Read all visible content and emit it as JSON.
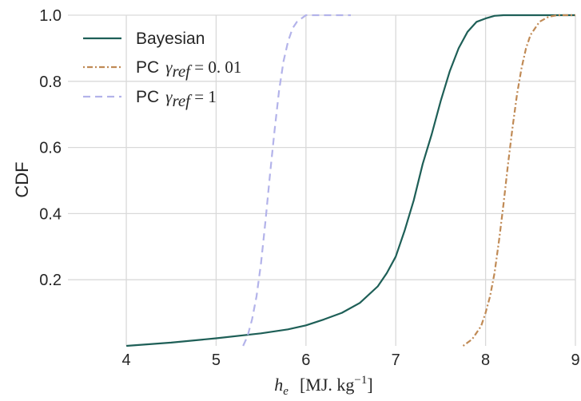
{
  "chart_data": {
    "type": "line",
    "title": "",
    "ylabel": "CDF",
    "xlabel": {
      "var": "h",
      "sub": "e",
      "unit_open": "[MJ. kg",
      "unit_exp": "−1",
      "unit_close": "]"
    },
    "xlim": [
      3.35,
      9.0
    ],
    "ylim": [
      0.0,
      1.0
    ],
    "xticks": [
      4,
      5,
      6,
      7,
      8,
      9
    ],
    "xtick_labels": [
      "4",
      "5",
      "6",
      "7",
      "8",
      "9"
    ],
    "yticks": [
      0.2,
      0.4,
      0.6,
      0.8,
      1.0
    ],
    "ytick_labels": [
      "0.2",
      "0.4",
      "0.6",
      "0.8",
      "1.0"
    ],
    "grid": true,
    "legend_position": "top-left",
    "series": [
      {
        "name": "Bayesian",
        "style": "solid",
        "color": "#1e5f57",
        "x": [
          4.0,
          4.5,
          5.0,
          5.5,
          5.8,
          6.0,
          6.2,
          6.4,
          6.6,
          6.8,
          6.9,
          7.0,
          7.1,
          7.2,
          7.3,
          7.4,
          7.5,
          7.6,
          7.7,
          7.8,
          7.9,
          8.0,
          8.1,
          8.2,
          8.3,
          9.0
        ],
        "y": [
          0.0,
          0.01,
          0.023,
          0.038,
          0.05,
          0.062,
          0.08,
          0.1,
          0.13,
          0.18,
          0.22,
          0.27,
          0.35,
          0.44,
          0.55,
          0.64,
          0.74,
          0.83,
          0.9,
          0.95,
          0.98,
          0.99,
          0.998,
          1.0,
          1.0,
          1.0
        ]
      },
      {
        "name": "PC",
        "name_math": "γ",
        "name_sub": "ref",
        "name_eq": " = 0. 01",
        "style": "dashdot",
        "color": "#c08a55",
        "x": [
          7.75,
          7.85,
          7.95,
          8.0,
          8.05,
          8.1,
          8.15,
          8.2,
          8.25,
          8.3,
          8.35,
          8.4,
          8.45,
          8.5,
          8.6,
          8.7,
          8.8,
          9.0
        ],
        "y": [
          0.0,
          0.02,
          0.06,
          0.1,
          0.15,
          0.22,
          0.32,
          0.43,
          0.55,
          0.66,
          0.76,
          0.84,
          0.9,
          0.94,
          0.98,
          0.995,
          1.0,
          1.0
        ]
      },
      {
        "name": "PC",
        "name_math": "γ",
        "name_sub": "ref",
        "name_eq": " = 1",
        "style": "dashed",
        "color": "#b3b3ea",
        "x": [
          5.3,
          5.35,
          5.4,
          5.45,
          5.5,
          5.55,
          5.6,
          5.65,
          5.7,
          5.75,
          5.8,
          5.85,
          5.9,
          5.95,
          6.0,
          6.1,
          6.3,
          6.5
        ],
        "y": [
          0.0,
          0.03,
          0.08,
          0.15,
          0.25,
          0.38,
          0.52,
          0.65,
          0.77,
          0.86,
          0.92,
          0.96,
          0.98,
          0.99,
          1.0,
          1.0,
          1.0,
          1.0
        ]
      }
    ]
  }
}
